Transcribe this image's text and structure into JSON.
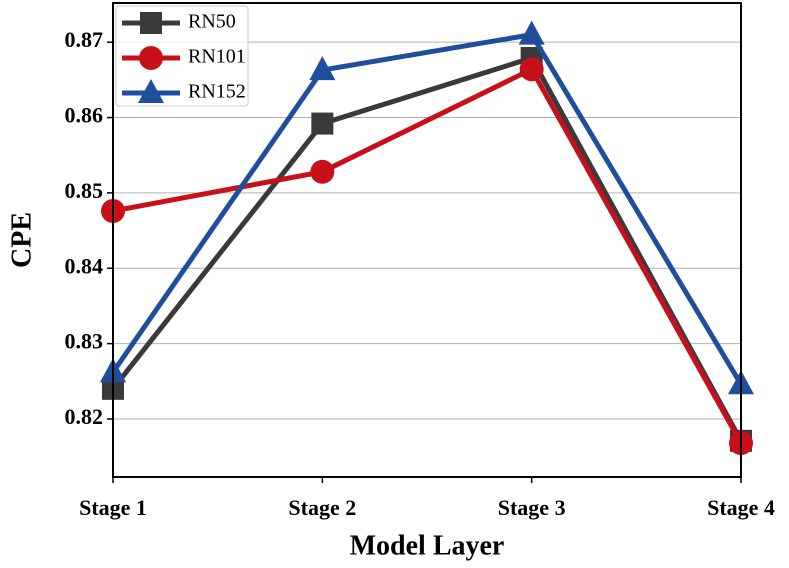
{
  "chart_data": {
    "type": "line",
    "x_label": "Model Layer",
    "y_label": "CPE",
    "categories": [
      "Stage 1",
      "Stage 2",
      "Stage 3",
      "Stage 4"
    ],
    "series": [
      {
        "name": "RN50",
        "color": "#3a3a3a",
        "marker": "square",
        "values": [
          0.824,
          0.8592,
          0.8679,
          0.8171
        ]
      },
      {
        "name": "RN101",
        "color": "#c8101a",
        "marker": "circle",
        "values": [
          0.8476,
          0.8528,
          0.8664,
          0.8168
        ]
      },
      {
        "name": "RN152",
        "color": "#1f4e9c",
        "marker": "triangle",
        "values": [
          0.8262,
          0.8663,
          0.871,
          0.8246
        ]
      }
    ],
    "ylim": [
      0.8123,
      0.8752
    ],
    "yticks": [
      0.82,
      0.83,
      0.84,
      0.85,
      0.86,
      0.87
    ],
    "grid": true,
    "legend": "upper left"
  }
}
